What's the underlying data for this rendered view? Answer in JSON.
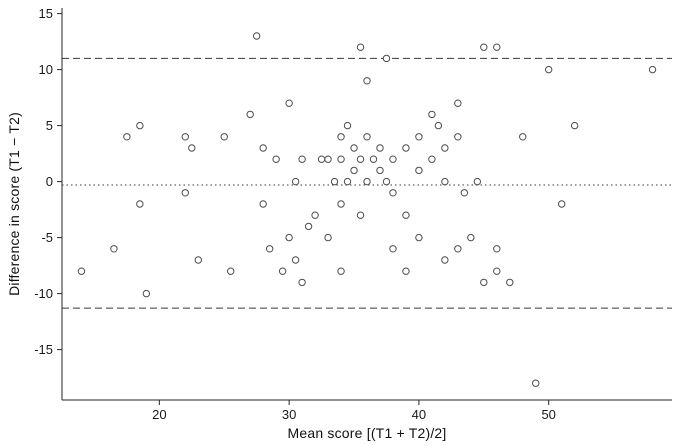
{
  "figure": {
    "background": "#ffffff",
    "axis_color": "#262626",
    "marker_stroke": "#4d4d4d",
    "marker_fill": "#ffffff",
    "ref_line_color": "#3a3a3a"
  },
  "chart_data": {
    "type": "scatter",
    "title": "",
    "xlabel": "Mean score [(T1 + T2)/2]",
    "ylabel": "Difference in score (T1 − T2)",
    "xlim": [
      12.5,
      59.5
    ],
    "ylim": [
      -19.5,
      15.5
    ],
    "xticks": [
      20,
      30,
      40,
      50
    ],
    "yticks": [
      15,
      10,
      5,
      0,
      -5,
      -10,
      -15
    ],
    "grid": false,
    "legend": "none",
    "marker": "open-circle",
    "reference_lines": [
      {
        "name": "upper-dashed",
        "y": 11.0,
        "style": "dashed"
      },
      {
        "name": "mean-dotted",
        "y": -0.3,
        "style": "dotted"
      },
      {
        "name": "lower-dashed",
        "y": -11.3,
        "style": "dashed"
      }
    ],
    "points": [
      [
        14,
        -8
      ],
      [
        16.5,
        -6
      ],
      [
        17.5,
        4
      ],
      [
        18.5,
        5
      ],
      [
        18.5,
        -2
      ],
      [
        19,
        -10
      ],
      [
        22,
        4
      ],
      [
        22,
        -1
      ],
      [
        22.5,
        3
      ],
      [
        23,
        -7
      ],
      [
        25,
        4
      ],
      [
        25.5,
        -8
      ],
      [
        27,
        6
      ],
      [
        27.5,
        13
      ],
      [
        28,
        3
      ],
      [
        28,
        -2
      ],
      [
        28.5,
        -6
      ],
      [
        29,
        2
      ],
      [
        29.5,
        -8
      ],
      [
        30,
        7
      ],
      [
        30,
        -5
      ],
      [
        30.5,
        0
      ],
      [
        30.5,
        -7
      ],
      [
        31,
        2
      ],
      [
        31,
        -9
      ],
      [
        31.5,
        -4
      ],
      [
        32,
        -3
      ],
      [
        32.5,
        2
      ],
      [
        33,
        2
      ],
      [
        33,
        -5
      ],
      [
        33.5,
        0
      ],
      [
        34,
        4
      ],
      [
        34,
        2
      ],
      [
        34,
        -2
      ],
      [
        34,
        -8
      ],
      [
        34.5,
        5
      ],
      [
        34.5,
        0
      ],
      [
        35,
        3
      ],
      [
        35,
        1
      ],
      [
        35.5,
        12
      ],
      [
        35.5,
        2
      ],
      [
        35.5,
        -3
      ],
      [
        36,
        9
      ],
      [
        36,
        4
      ],
      [
        36,
        0
      ],
      [
        36.5,
        2
      ],
      [
        37.5,
        11
      ],
      [
        37,
        3
      ],
      [
        37,
        1
      ],
      [
        37.5,
        0
      ],
      [
        38,
        2
      ],
      [
        38,
        -1
      ],
      [
        38,
        -6
      ],
      [
        39,
        3
      ],
      [
        39,
        -3
      ],
      [
        39,
        -8
      ],
      [
        40,
        4
      ],
      [
        40,
        1
      ],
      [
        40,
        -5
      ],
      [
        41,
        6
      ],
      [
        41,
        2
      ],
      [
        41.5,
        5
      ],
      [
        42,
        3
      ],
      [
        42,
        0
      ],
      [
        42,
        -7
      ],
      [
        43,
        7
      ],
      [
        43,
        4
      ],
      [
        43,
        -6
      ],
      [
        43.5,
        -1
      ],
      [
        44,
        -5
      ],
      [
        44.5,
        0
      ],
      [
        45,
        12
      ],
      [
        45,
        -9
      ],
      [
        46,
        12
      ],
      [
        46,
        -6
      ],
      [
        46,
        -8
      ],
      [
        47,
        -9
      ],
      [
        48,
        4
      ],
      [
        49,
        -18
      ],
      [
        50,
        10
      ],
      [
        51,
        -2
      ],
      [
        52,
        5
      ],
      [
        58,
        10
      ]
    ]
  }
}
